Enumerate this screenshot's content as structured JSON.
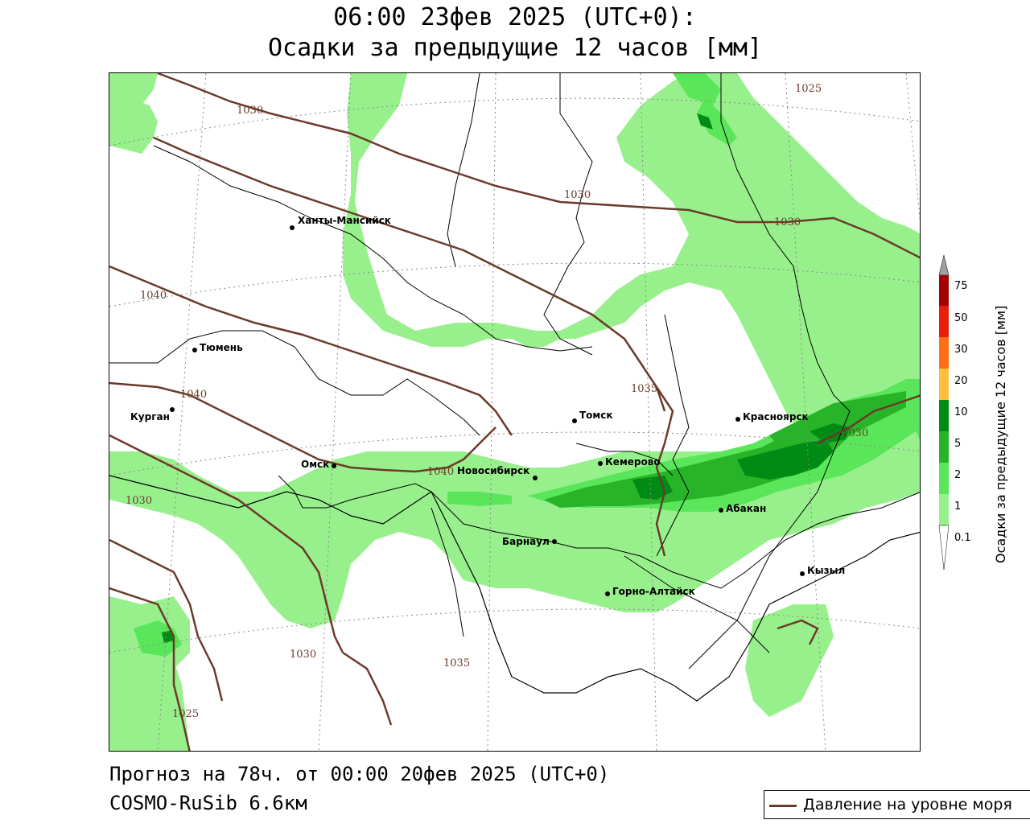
{
  "title": {
    "line1": "06:00 23фев 2025 (UTC+0):",
    "line2": "Осадки за предыдущие 12 часов [мм]"
  },
  "footer": {
    "forecast": "Прогноз на 78ч. от 00:00 20фев 2025 (UTC+0)",
    "model": "COSMO-RuSib 6.6км"
  },
  "legend": {
    "pressure_label": "Давление на уровне моря",
    "pressure_color": "#6b3a2a"
  },
  "colorbar": {
    "title": "Осадки за предыдущие 12 часов [мм]",
    "levels": [
      "0.1",
      "1",
      "2",
      "5",
      "10",
      "20",
      "30",
      "50",
      "75"
    ],
    "colors": [
      "#ffffff",
      "#98f08c",
      "#5ae65a",
      "#28b428",
      "#008c14",
      "#ffbe3c",
      "#ff6e14",
      "#e61e0a",
      "#a50000",
      "#a0a0a0"
    ]
  },
  "cities": [
    {
      "name": "Ханты-Мансийск"
    },
    {
      "name": "Тюмень"
    },
    {
      "name": "Курган"
    },
    {
      "name": "Омск"
    },
    {
      "name": "Новосибирск"
    },
    {
      "name": "Томск"
    },
    {
      "name": "Кемерово"
    },
    {
      "name": "Красноярск"
    },
    {
      "name": "Абакан"
    },
    {
      "name": "Барнаул"
    },
    {
      "name": "Горно-Алтайск"
    },
    {
      "name": "Кызыл"
    }
  ],
  "isobars": [
    "1030",
    "1030",
    "1030",
    "1040",
    "1040",
    "1040",
    "1035",
    "1030",
    "1030",
    "1030",
    "1035",
    "1025",
    "1025"
  ]
}
